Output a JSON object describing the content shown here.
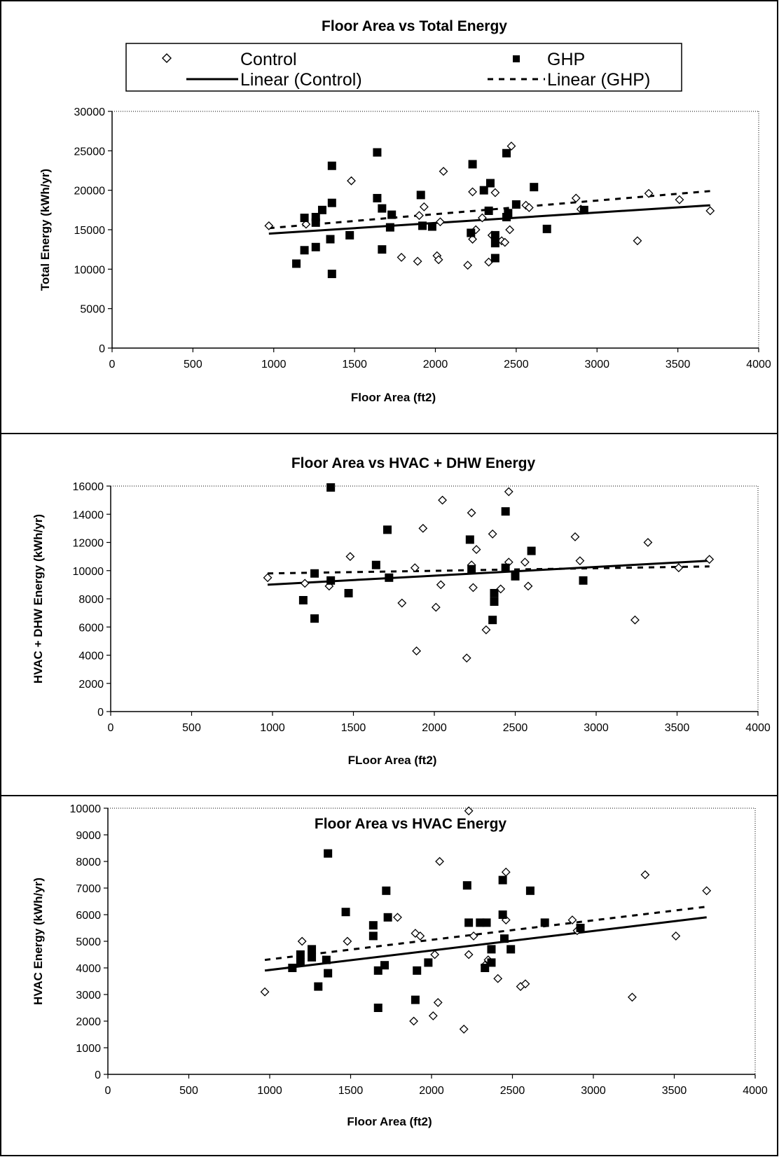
{
  "legend": {
    "control": "Control",
    "ghp": "GHP",
    "linear_control": "Linear (Control)",
    "linear_ghp": "Linear (GHP)"
  },
  "colors": {
    "ink": "#000000",
    "background": "#ffffff"
  },
  "chart_data": [
    {
      "type": "scatter",
      "title": "Floor Area vs Total Energy",
      "xlabel": "Floor Area (ft2)",
      "ylabel": "Total Energy (kWh/yr)",
      "xlim": [
        0,
        4000
      ],
      "ylim": [
        0,
        30000
      ],
      "xticks": [
        0,
        500,
        1000,
        1500,
        2000,
        2500,
        3000,
        3500,
        4000
      ],
      "yticks": [
        0,
        5000,
        10000,
        15000,
        20000,
        25000,
        30000
      ],
      "legend_position": "top",
      "series": [
        {
          "name": "Control",
          "marker": "diamond-open",
          "points": [
            [
              970,
              15500
            ],
            [
              1200,
              15700
            ],
            [
              1480,
              21200
            ],
            [
              1790,
              11500
            ],
            [
              1890,
              11000
            ],
            [
              1900,
              16800
            ],
            [
              1930,
              17900
            ],
            [
              2010,
              11700
            ],
            [
              2020,
              11200
            ],
            [
              2030,
              16000
            ],
            [
              2050,
              22400
            ],
            [
              2200,
              10500
            ],
            [
              2230,
              19800
            ],
            [
              2230,
              13800
            ],
            [
              2250,
              15000
            ],
            [
              2290,
              16500
            ],
            [
              2330,
              10900
            ],
            [
              2350,
              14300
            ],
            [
              2370,
              19700
            ],
            [
              2410,
              13600
            ],
            [
              2430,
              13400
            ],
            [
              2460,
              15000
            ],
            [
              2470,
              25600
            ],
            [
              2560,
              18100
            ],
            [
              2580,
              17800
            ],
            [
              2870,
              19000
            ],
            [
              2900,
              17600
            ],
            [
              3250,
              13600
            ],
            [
              3320,
              19600
            ],
            [
              3510,
              18800
            ],
            [
              3700,
              17400
            ]
          ]
        },
        {
          "name": "GHP",
          "marker": "square-filled",
          "points": [
            [
              1140,
              10700
            ],
            [
              1190,
              12400
            ],
            [
              1190,
              16500
            ],
            [
              1260,
              16600
            ],
            [
              1260,
              15900
            ],
            [
              1260,
              12800
            ],
            [
              1300,
              17500
            ],
            [
              1350,
              13800
            ],
            [
              1360,
              18400
            ],
            [
              1360,
              23100
            ],
            [
              1360,
              9400
            ],
            [
              1470,
              14300
            ],
            [
              1640,
              24800
            ],
            [
              1640,
              19000
            ],
            [
              1670,
              12500
            ],
            [
              1670,
              17700
            ],
            [
              1720,
              15300
            ],
            [
              1730,
              16900
            ],
            [
              1910,
              19400
            ],
            [
              1920,
              15500
            ],
            [
              1980,
              15400
            ],
            [
              2220,
              14600
            ],
            [
              2230,
              23300
            ],
            [
              2300,
              20000
            ],
            [
              2330,
              17400
            ],
            [
              2340,
              20900
            ],
            [
              2370,
              11400
            ],
            [
              2370,
              14300
            ],
            [
              2370,
              13300
            ],
            [
              2440,
              24700
            ],
            [
              2440,
              16600
            ],
            [
              2450,
              17100
            ],
            [
              2500,
              18200
            ],
            [
              2610,
              20400
            ],
            [
              2690,
              15100
            ],
            [
              2920,
              17500
            ]
          ]
        }
      ],
      "trendlines": [
        {
          "name": "Linear (Control)",
          "style": "solid",
          "x": [
            970,
            3700
          ],
          "y": [
            14500,
            18100
          ]
        },
        {
          "name": "Linear (GHP)",
          "style": "dashed",
          "x": [
            970,
            3700
          ],
          "y": [
            15200,
            19900
          ]
        }
      ]
    },
    {
      "type": "scatter",
      "title": "Floor Area vs HVAC + DHW Energy",
      "xlabel": "FLoor Area (ft2)",
      "ylabel": "HVAC + DHW Energy (kWh/yr)",
      "xlim": [
        0,
        4000
      ],
      "ylim": [
        0,
        16000
      ],
      "xticks": [
        0,
        500,
        1000,
        1500,
        2000,
        2500,
        3000,
        3500,
        4000
      ],
      "yticks": [
        0,
        2000,
        4000,
        6000,
        8000,
        10000,
        12000,
        14000,
        16000
      ],
      "series": [
        {
          "name": "Control",
          "marker": "diamond-open",
          "points": [
            [
              970,
              9500
            ],
            [
              1200,
              9100
            ],
            [
              1350,
              8900
            ],
            [
              1480,
              11000
            ],
            [
              1800,
              7700
            ],
            [
              1880,
              10200
            ],
            [
              1890,
              4300
            ],
            [
              1930,
              13000
            ],
            [
              2010,
              7400
            ],
            [
              2040,
              9000
            ],
            [
              2050,
              15000
            ],
            [
              2200,
              3800
            ],
            [
              2230,
              14100
            ],
            [
              2230,
              10400
            ],
            [
              2240,
              8800
            ],
            [
              2260,
              11500
            ],
            [
              2320,
              5800
            ],
            [
              2360,
              12600
            ],
            [
              2410,
              8700
            ],
            [
              2460,
              10600
            ],
            [
              2460,
              15600
            ],
            [
              2560,
              10600
            ],
            [
              2580,
              8900
            ],
            [
              2870,
              12400
            ],
            [
              2900,
              10700
            ],
            [
              3240,
              6500
            ],
            [
              3320,
              12000
            ],
            [
              3510,
              10200
            ],
            [
              3700,
              10800
            ]
          ]
        },
        {
          "name": "GHP",
          "marker": "square-filled",
          "points": [
            [
              1190,
              7900
            ],
            [
              1260,
              6600
            ],
            [
              1260,
              9800
            ],
            [
              1360,
              15900
            ],
            [
              1360,
              9300
            ],
            [
              1470,
              8400
            ],
            [
              1640,
              10400
            ],
            [
              1710,
              12900
            ],
            [
              1720,
              9500
            ],
            [
              2220,
              12200
            ],
            [
              2230,
              10100
            ],
            [
              2360,
              6500
            ],
            [
              2370,
              8400
            ],
            [
              2370,
              7800
            ],
            [
              2440,
              14200
            ],
            [
              2440,
              10200
            ],
            [
              2500,
              9600
            ],
            [
              2600,
              11400
            ],
            [
              2920,
              9300
            ]
          ]
        }
      ],
      "trendlines": [
        {
          "name": "Linear (Control)",
          "style": "solid",
          "x": [
            970,
            3700
          ],
          "y": [
            9000,
            10700
          ]
        },
        {
          "name": "Linear (GHP)",
          "style": "dashed",
          "x": [
            970,
            3700
          ],
          "y": [
            9800,
            10300
          ]
        }
      ]
    },
    {
      "type": "scatter",
      "title": "Floor Area vs HVAC Energy",
      "xlabel": "Floor Area (ft2)",
      "ylabel": "HVAC Energy (kWh/yr)",
      "xlim": [
        0,
        4000
      ],
      "ylim": [
        0,
        10000
      ],
      "xticks": [
        0,
        500,
        1000,
        1500,
        2000,
        2500,
        3000,
        3500,
        4000
      ],
      "yticks": [
        0,
        1000,
        2000,
        3000,
        4000,
        5000,
        6000,
        7000,
        8000,
        9000,
        10000
      ],
      "series": [
        {
          "name": "Control",
          "marker": "diamond-open",
          "points": [
            [
              970,
              3100
            ],
            [
              1200,
              5000
            ],
            [
              1480,
              5000
            ],
            [
              1790,
              5900
            ],
            [
              1890,
              2000
            ],
            [
              1900,
              5300
            ],
            [
              1930,
              5200
            ],
            [
              2010,
              2200
            ],
            [
              2020,
              4500
            ],
            [
              2040,
              2700
            ],
            [
              2050,
              8000
            ],
            [
              2200,
              1700
            ],
            [
              2230,
              9900
            ],
            [
              2230,
              4500
            ],
            [
              2260,
              5200
            ],
            [
              2330,
              4100
            ],
            [
              2350,
              4300
            ],
            [
              2410,
              3600
            ],
            [
              2460,
              7600
            ],
            [
              2460,
              5800
            ],
            [
              2550,
              3300
            ],
            [
              2580,
              3400
            ],
            [
              2870,
              5800
            ],
            [
              2900,
              5400
            ],
            [
              3240,
              2900
            ],
            [
              3320,
              7500
            ],
            [
              3510,
              5200
            ],
            [
              3700,
              6900
            ]
          ]
        },
        {
          "name": "GHP",
          "marker": "square-filled",
          "points": [
            [
              1140,
              4000
            ],
            [
              1190,
              4200
            ],
            [
              1190,
              4500
            ],
            [
              1260,
              4700
            ],
            [
              1260,
              4400
            ],
            [
              1300,
              3300
            ],
            [
              1350,
              4300
            ],
            [
              1360,
              8300
            ],
            [
              1360,
              3800
            ],
            [
              1470,
              6100
            ],
            [
              1640,
              5600
            ],
            [
              1640,
              5200
            ],
            [
              1670,
              2500
            ],
            [
              1670,
              3900
            ],
            [
              1710,
              4100
            ],
            [
              1720,
              6900
            ],
            [
              1730,
              5900
            ],
            [
              1900,
              2800
            ],
            [
              1910,
              3900
            ],
            [
              1980,
              4200
            ],
            [
              2220,
              7100
            ],
            [
              2230,
              5700
            ],
            [
              2300,
              5700
            ],
            [
              2330,
              4000
            ],
            [
              2340,
              5700
            ],
            [
              2370,
              4700
            ],
            [
              2370,
              4200
            ],
            [
              2440,
              7300
            ],
            [
              2440,
              6000
            ],
            [
              2450,
              5100
            ],
            [
              2490,
              4700
            ],
            [
              2610,
              6900
            ],
            [
              2700,
              5700
            ],
            [
              2920,
              5500
            ]
          ]
        }
      ],
      "trendlines": [
        {
          "name": "Linear (Control)",
          "style": "solid",
          "x": [
            970,
            3700
          ],
          "y": [
            3900,
            5900
          ]
        },
        {
          "name": "Linear (GHP)",
          "style": "dashed",
          "x": [
            970,
            3700
          ],
          "y": [
            4300,
            6300
          ]
        }
      ]
    }
  ]
}
